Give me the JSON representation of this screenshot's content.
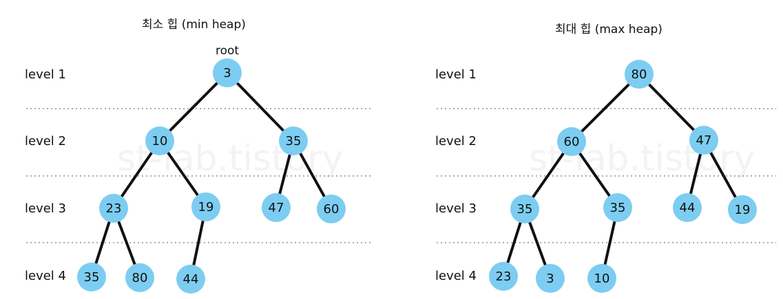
{
  "watermark": "st-lab.tistory",
  "level_labels": [
    "level 1",
    "level 2",
    "level 3",
    "level 4"
  ],
  "panels": [
    {
      "title": "최소 힙 (min heap)",
      "root_label": "root",
      "nodes": [
        "3",
        "10",
        "35",
        "23",
        "19",
        "47",
        "60",
        "35",
        "80",
        "44"
      ]
    },
    {
      "title": "최대 힙 (max heap)",
      "root_label": "",
      "nodes": [
        "80",
        "60",
        "47",
        "35",
        "35",
        "44",
        "19",
        "23",
        "3",
        "10"
      ]
    }
  ]
}
